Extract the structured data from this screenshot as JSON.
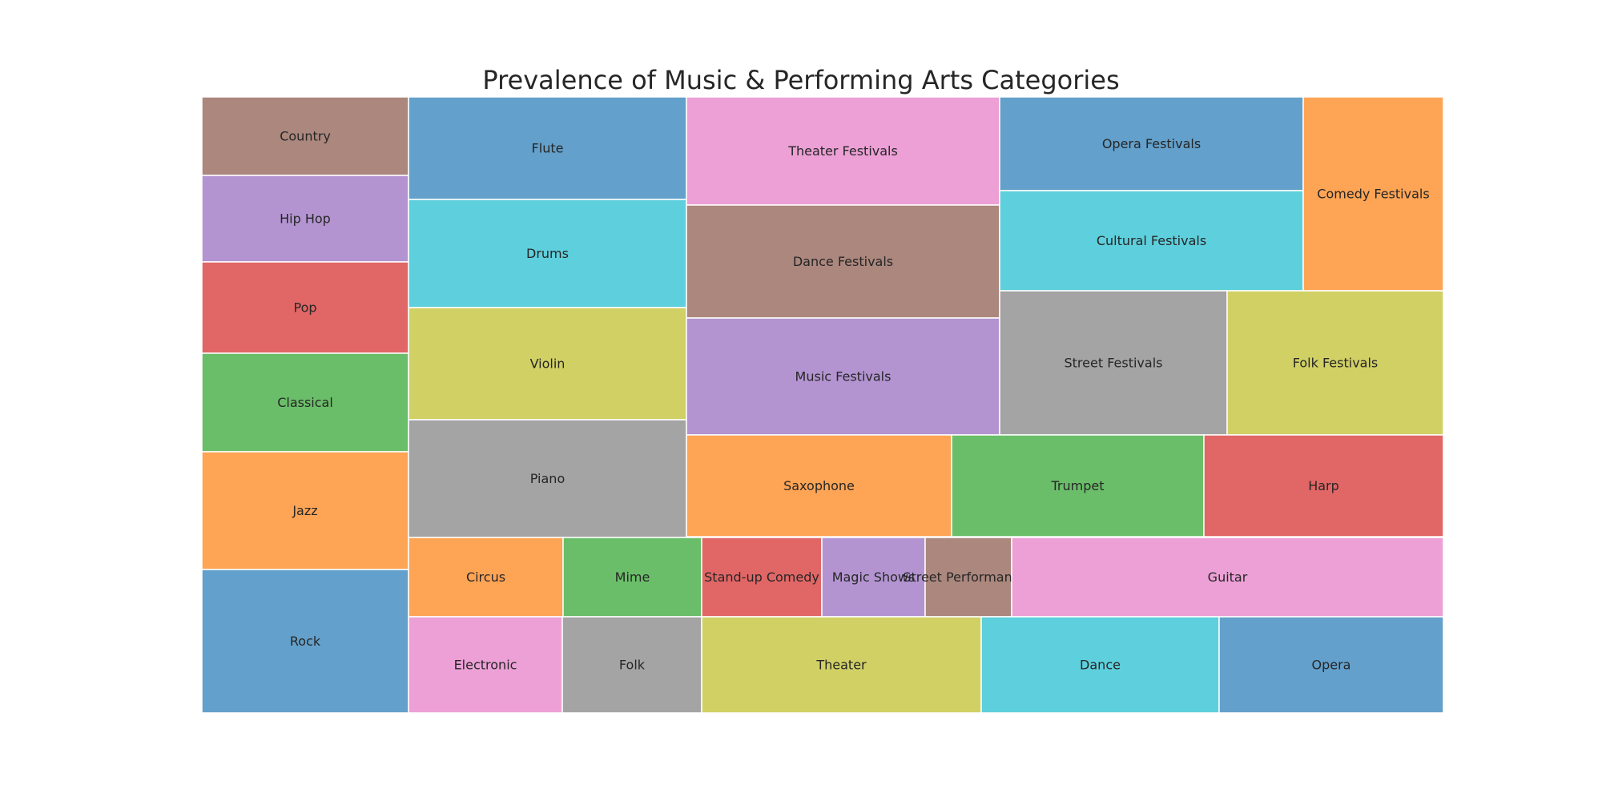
{
  "chart_data": {
    "type": "treemap",
    "title": "Prevalence of Music & Performing Arts Categories",
    "items": [
      {
        "label": "Country",
        "color": "#AB877D"
      },
      {
        "label": "Hip Hop",
        "color": "#B394D1"
      },
      {
        "label": "Pop",
        "color": "#E16666"
      },
      {
        "label": "Classical",
        "color": "#6BBE69"
      },
      {
        "label": "Jazz",
        "color": "#FEA455"
      },
      {
        "label": "Rock",
        "color": "#63A0CB"
      },
      {
        "label": "Flute",
        "color": "#63A0CB"
      },
      {
        "label": "Drums",
        "color": "#5ECFDC"
      },
      {
        "label": "Violin",
        "color": "#D1D065"
      },
      {
        "label": "Piano",
        "color": "#A4A4A4"
      },
      {
        "label": "Theater Festivals",
        "color": "#ECA0D6"
      },
      {
        "label": "Dance Festivals",
        "color": "#AB877D"
      },
      {
        "label": "Music Festivals",
        "color": "#B394D1"
      },
      {
        "label": "Opera Festivals",
        "color": "#63A0CB"
      },
      {
        "label": "Cultural Festivals",
        "color": "#5ECFDC"
      },
      {
        "label": "Comedy Festivals",
        "color": "#FEA455"
      },
      {
        "label": "Street Festivals",
        "color": "#A4A4A4"
      },
      {
        "label": "Folk Festivals",
        "color": "#D1D065"
      },
      {
        "label": "Saxophone",
        "color": "#FEA455"
      },
      {
        "label": "Trumpet",
        "color": "#6BBE69"
      },
      {
        "label": "Harp",
        "color": "#E16666"
      },
      {
        "label": "Circus",
        "color": "#FEA455"
      },
      {
        "label": "Mime",
        "color": "#6BBE69"
      },
      {
        "label": "Stand-up Comedy",
        "color": "#E16666"
      },
      {
        "label": "Magic Shows",
        "color": "#B394D1"
      },
      {
        "label": "Street Performances",
        "color": "#AB877D"
      },
      {
        "label": "Guitar",
        "color": "#ECA0D6"
      },
      {
        "label": "Electronic",
        "color": "#ECA0D6"
      },
      {
        "label": "Folk",
        "color": "#A4A4A4"
      },
      {
        "label": "Theater",
        "color": "#D1D065"
      },
      {
        "label": "Dance",
        "color": "#5ECFDC"
      },
      {
        "label": "Opera",
        "color": "#63A0CB"
      }
    ]
  }
}
